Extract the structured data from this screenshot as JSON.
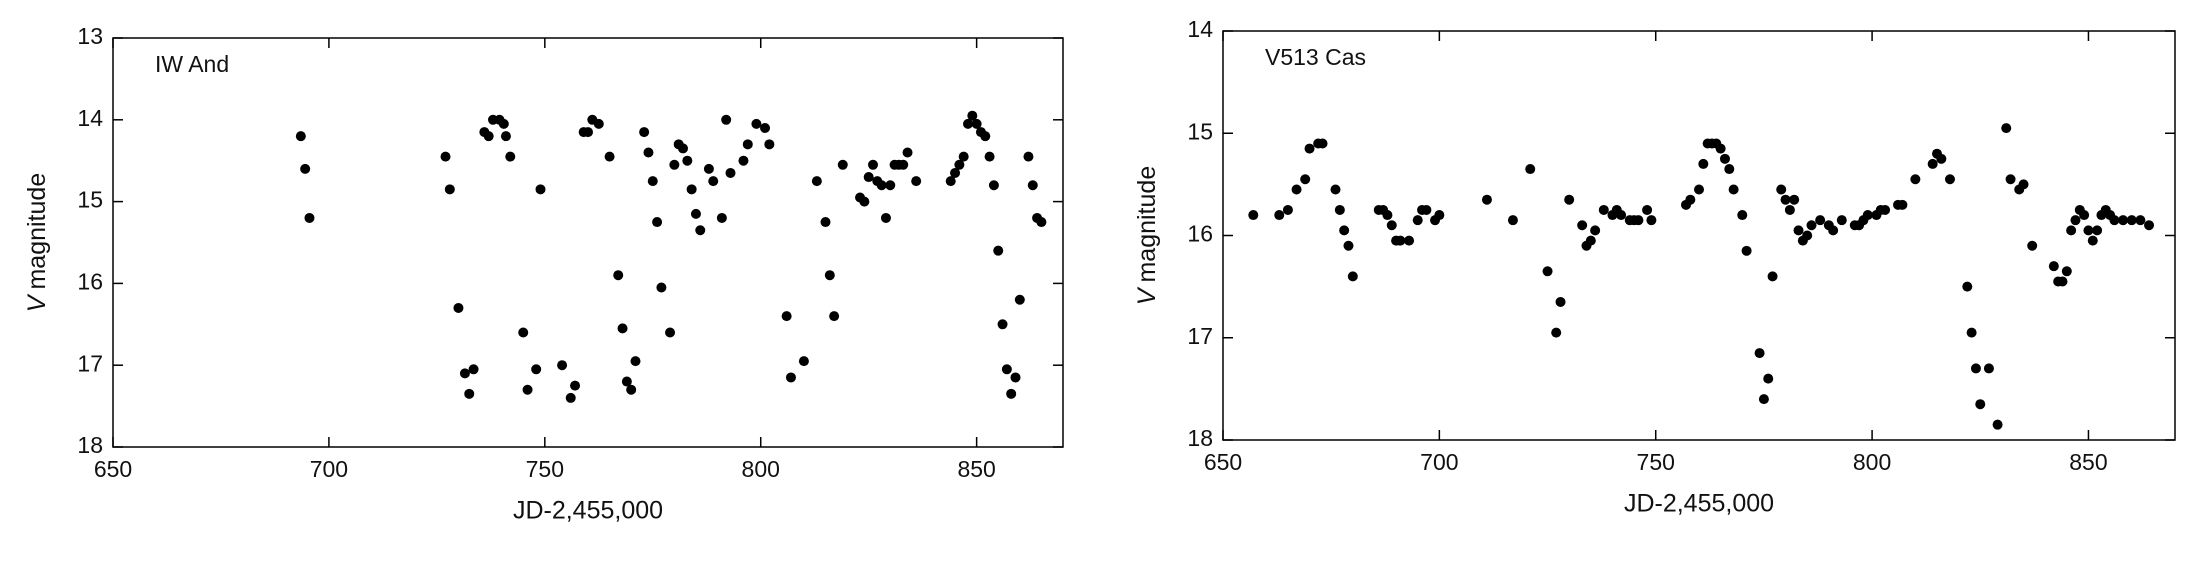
{
  "chart_data": [
    {
      "type": "scatter",
      "annotation": "IW And",
      "x_label": "JD-2,455,000",
      "y_label_symbol": "V",
      "y_label": "magnitude",
      "xlim": [
        650,
        870
      ],
      "xticks": [
        650,
        700,
        750,
        800,
        850
      ],
      "ylim": [
        13,
        18
      ],
      "yticks": [
        13,
        14,
        15,
        16,
        17,
        18
      ],
      "y_inverted": true,
      "color": "#000000",
      "x": [
        693.5,
        694.5,
        695.5,
        727,
        728,
        730,
        731.5,
        732.5,
        733.5,
        736,
        737,
        738,
        739.5,
        740.5,
        741,
        742,
        745,
        746,
        748,
        749,
        754,
        756,
        757,
        759,
        760,
        761,
        762.5,
        765,
        767,
        768,
        769,
        770,
        771,
        773,
        774,
        775,
        776,
        777,
        779,
        780,
        781,
        782,
        783,
        784,
        785,
        786,
        788,
        789,
        791,
        792,
        793,
        796,
        797,
        799,
        801,
        802,
        806,
        807,
        810,
        813,
        815,
        816,
        817,
        819,
        823,
        824,
        825,
        826,
        827,
        828,
        829,
        830,
        831,
        832,
        833,
        834,
        836,
        844,
        845,
        846,
        847,
        848,
        849,
        850,
        851,
        852,
        853,
        854,
        855,
        856,
        857,
        858,
        859,
        860,
        862,
        863,
        864,
        865
      ],
      "values": [
        14.2,
        14.6,
        15.2,
        14.45,
        14.85,
        16.3,
        17.1,
        17.35,
        17.05,
        14.15,
        14.2,
        14.0,
        14.0,
        14.05,
        14.2,
        14.45,
        16.6,
        17.3,
        17.05,
        14.85,
        17.0,
        17.4,
        17.25,
        14.15,
        14.15,
        14.0,
        14.05,
        14.45,
        15.9,
        16.55,
        17.2,
        17.3,
        16.95,
        14.15,
        14.4,
        14.75,
        15.25,
        16.05,
        16.6,
        14.55,
        14.3,
        14.35,
        14.5,
        14.85,
        15.15,
        15.35,
        14.6,
        14.75,
        15.2,
        14.0,
        14.65,
        14.5,
        14.3,
        14.05,
        14.1,
        14.3,
        16.4,
        17.15,
        16.95,
        14.75,
        15.25,
        15.9,
        16.4,
        14.55,
        14.95,
        15.0,
        14.7,
        14.55,
        14.75,
        14.8,
        15.2,
        14.8,
        14.55,
        14.55,
        14.55,
        14.4,
        14.75,
        14.75,
        14.65,
        14.55,
        14.45,
        14.05,
        13.95,
        14.05,
        14.15,
        14.2,
        14.45,
        14.8,
        15.6,
        16.5,
        17.05,
        17.35,
        17.15,
        16.2,
        14.45,
        14.8,
        15.2,
        15.25
      ]
    },
    {
      "type": "scatter",
      "annotation": "V513 Cas",
      "x_label": "JD-2,455,000",
      "y_label_symbol": "V",
      "y_label": "magnitude",
      "xlim": [
        650,
        870
      ],
      "xticks": [
        650,
        700,
        750,
        800,
        850
      ],
      "ylim": [
        14,
        18
      ],
      "yticks": [
        14,
        15,
        16,
        17,
        18
      ],
      "y_inverted": true,
      "color": "#000000",
      "x": [
        657,
        663,
        665,
        667,
        669,
        670,
        672,
        673,
        676,
        677,
        678,
        679,
        680,
        686,
        687,
        688,
        689,
        690,
        691,
        693,
        695,
        696,
        697,
        699,
        700,
        711,
        717,
        721,
        725,
        727,
        728,
        730,
        733,
        734,
        735,
        736,
        738,
        740,
        741,
        742,
        744,
        745,
        746,
        748,
        749,
        757,
        758,
        760,
        761,
        762,
        763,
        764,
        765,
        766,
        767,
        768,
        770,
        771,
        774,
        775,
        776,
        777,
        779,
        780,
        781,
        782,
        783,
        784,
        785,
        786,
        788,
        790,
        791,
        793,
        796,
        797,
        798,
        799,
        801,
        802,
        803,
        806,
        807,
        810,
        814,
        815,
        816,
        818,
        822,
        823,
        824,
        825,
        827,
        829,
        831,
        832,
        834,
        835,
        837,
        842,
        843,
        844,
        845,
        846,
        847,
        848,
        849,
        850,
        851,
        852,
        853,
        854,
        855,
        856,
        858,
        860,
        862,
        864
      ],
      "values": [
        15.8,
        15.8,
        15.75,
        15.55,
        15.45,
        15.15,
        15.1,
        15.1,
        15.55,
        15.75,
        15.95,
        16.1,
        16.4,
        15.75,
        15.75,
        15.8,
        15.9,
        16.05,
        16.05,
        16.05,
        15.85,
        15.75,
        15.75,
        15.85,
        15.8,
        15.65,
        15.85,
        15.35,
        16.35,
        16.95,
        16.65,
        15.65,
        15.9,
        16.1,
        16.05,
        15.95,
        15.75,
        15.8,
        15.75,
        15.8,
        15.85,
        15.85,
        15.85,
        15.75,
        15.85,
        15.7,
        15.65,
        15.55,
        15.3,
        15.1,
        15.1,
        15.1,
        15.15,
        15.25,
        15.35,
        15.55,
        15.8,
        16.15,
        17.15,
        17.6,
        17.4,
        16.4,
        15.55,
        15.65,
        15.75,
        15.65,
        15.95,
        16.05,
        16.0,
        15.9,
        15.85,
        15.9,
        15.95,
        15.85,
        15.9,
        15.9,
        15.85,
        15.8,
        15.8,
        15.75,
        15.75,
        15.7,
        15.7,
        15.45,
        15.3,
        15.2,
        15.25,
        15.45,
        16.5,
        16.95,
        17.3,
        17.65,
        17.3,
        17.85,
        14.95,
        15.45,
        15.55,
        15.5,
        16.1,
        16.3,
        16.45,
        16.45,
        16.35,
        15.95,
        15.85,
        15.75,
        15.8,
        15.95,
        16.05,
        15.95,
        15.8,
        15.75,
        15.8,
        15.85,
        15.85,
        15.85,
        15.85,
        15.9
      ]
    }
  ]
}
